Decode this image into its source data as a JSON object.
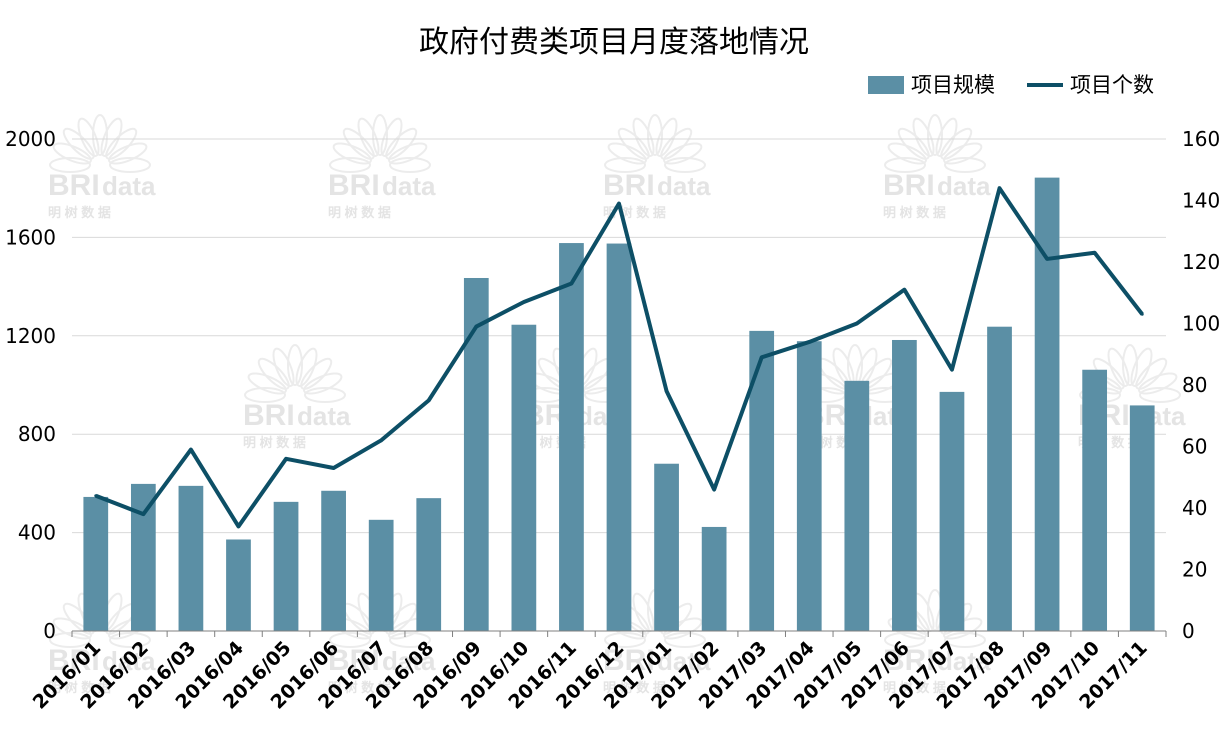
{
  "chart_data": {
    "type": "bar+line",
    "title": "政府付费类项目月度落地情况",
    "categories": [
      "2016/01",
      "2016/02",
      "2016/03",
      "2016/04",
      "2016/05",
      "2016/06",
      "2016/07",
      "2016/08",
      "2016/09",
      "2016/10",
      "2016/11",
      "2016/12",
      "2017/01",
      "2017/02",
      "2017/03",
      "2017/04",
      "2017/05",
      "2017/06",
      "2017/07",
      "2017/08",
      "2017/09",
      "2017/10",
      "2017/11"
    ],
    "series": [
      {
        "name": "项目规模",
        "type": "bar",
        "axis": "left",
        "values": [
          545,
          598,
          590,
          372,
          525,
          570,
          452,
          540,
          1435,
          1245,
          1577,
          1575,
          680,
          423,
          1220,
          1178,
          1017,
          1183,
          972,
          1237,
          1843,
          1062,
          917
        ]
      },
      {
        "name": "项目个数",
        "type": "line",
        "axis": "right",
        "values": [
          44,
          38,
          59,
          34,
          56,
          53,
          62,
          75,
          99,
          107,
          113,
          139,
          78,
          46,
          89,
          94,
          100,
          111,
          85,
          144,
          121,
          123,
          103
        ]
      }
    ],
    "y_left": {
      "min": 0,
      "max": 2000,
      "ticks": [
        0,
        400,
        800,
        1200,
        1600,
        2000
      ]
    },
    "y_right": {
      "min": 0,
      "max": 160,
      "ticks": [
        0,
        20,
        40,
        60,
        80,
        100,
        120,
        140,
        160
      ]
    },
    "grid": true,
    "legend_position": "top-right",
    "colors": {
      "bar": "#5b8fa5",
      "line": "#0d4f66",
      "grid": "#d9d9d9",
      "axis": "#7f7f7f"
    }
  },
  "watermark": {
    "logo": "BRI",
    "suffix": "data",
    "subtitle": "明 树 数 据"
  }
}
